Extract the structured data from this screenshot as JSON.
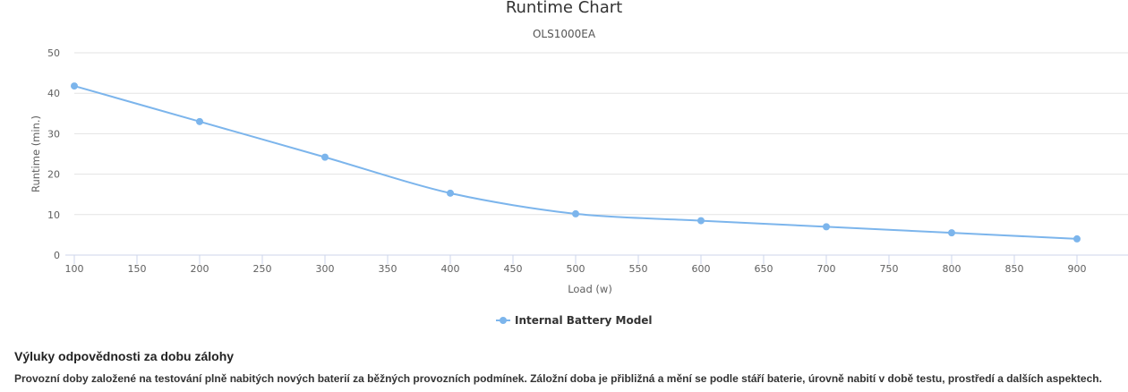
{
  "chart_data": {
    "type": "line",
    "title": "Runtime Chart",
    "subtitle": "OLS1000EA",
    "xlabel": "Load (w)",
    "ylabel": "Runtime (min.)",
    "xlim": [
      100,
      900
    ],
    "ylim": [
      0,
      50
    ],
    "x_ticks": [
      100,
      150,
      200,
      250,
      300,
      350,
      400,
      450,
      500,
      550,
      600,
      650,
      700,
      750,
      800,
      850,
      900
    ],
    "y_ticks": [
      0,
      10,
      20,
      30,
      40,
      50
    ],
    "grid": "horizontal",
    "legend_position": "bottom-center",
    "series": [
      {
        "name": "Internal Battery Model",
        "color": "#7cb5ec",
        "x": [
          100,
          200,
          300,
          400,
          500,
          600,
          700,
          800,
          900
        ],
        "y": [
          41.8,
          33.0,
          24.2,
          15.3,
          10.2,
          8.5,
          7.0,
          5.5,
          4.0
        ]
      }
    ]
  },
  "disclaimer": {
    "heading": "Výluky odpovědnosti za dobu zálohy",
    "text": "Provozní doby založené na testování plně nabitých nových baterií za běžných provozních podmínek. Záložní doba je přibližná a mění se podle stáří baterie, úrovně nabití v době testu, prostředí a dalších aspektech."
  }
}
